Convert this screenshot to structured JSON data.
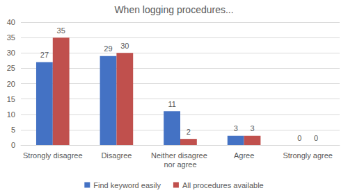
{
  "chart_data": {
    "type": "bar",
    "title": "When logging procedures...",
    "categories": [
      "Strongly disagree",
      "Disagree",
      "Neither disagree nor agree",
      "Agree",
      "Strongly agree"
    ],
    "series": [
      {
        "name": "Find keyword easily",
        "color": "#4472c4",
        "values": [
          27,
          29,
          11,
          3,
          0
        ]
      },
      {
        "name": "All procedures available",
        "color": "#c0504d",
        "values": [
          35,
          30,
          2,
          3,
          0
        ]
      }
    ],
    "ylim": [
      0,
      40
    ],
    "yticks": [
      0,
      5,
      10,
      15,
      20,
      25,
      30,
      35,
      40
    ],
    "grid": true,
    "legend": "bottom",
    "data_labels": true
  }
}
